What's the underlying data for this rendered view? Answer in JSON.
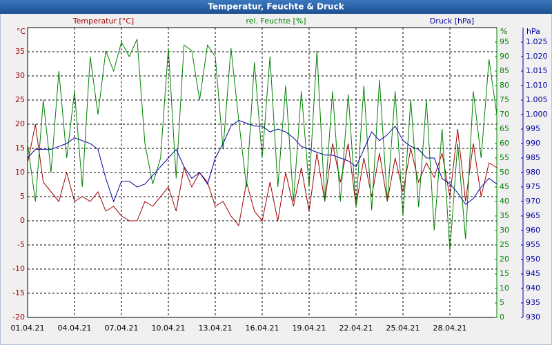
{
  "chart_data": {
    "type": "line",
    "title": "Temperatur, Feuchte & Druck",
    "ylabel": "°C",
    "y2label": "%",
    "y3label": "hPa",
    "x": [
      0,
      0.5,
      1,
      1.5,
      2,
      2.5,
      3,
      3.5,
      4,
      4.5,
      5,
      5.5,
      6,
      6.5,
      7,
      7.5,
      8,
      8.5,
      9,
      9.5,
      10,
      10.5,
      11,
      11.5,
      12,
      12.5,
      13,
      13.5,
      14,
      14.5,
      15,
      15.5,
      16,
      16.5,
      17,
      17.5,
      18,
      18.5,
      19,
      19.5,
      20,
      20.5,
      21,
      21.5,
      22,
      22.5,
      23,
      23.5,
      24,
      24.5,
      25,
      25.5,
      26,
      26.5,
      27,
      27.5,
      28,
      28.5,
      29,
      29.5,
      30
    ],
    "xlim": [
      0,
      30
    ],
    "xticks": [
      {
        "value": 0,
        "label": "01.04.21"
      },
      {
        "value": 3,
        "label": "04.04.21"
      },
      {
        "value": 6,
        "label": "07.04.21"
      },
      {
        "value": 9,
        "label": "10.04.21"
      },
      {
        "value": 12,
        "label": "13.04.21"
      },
      {
        "value": 15,
        "label": "16.04.21"
      },
      {
        "value": 18,
        "label": "19.04.21"
      },
      {
        "value": 21,
        "label": "22.04.21"
      },
      {
        "value": 24,
        "label": "25.04.21"
      },
      {
        "value": 27,
        "label": "28.04.21"
      }
    ],
    "ylim": [
      -20,
      40
    ],
    "yticks": [
      -20,
      -15,
      -10,
      -5,
      0,
      5,
      10,
      15,
      20,
      25,
      30,
      35
    ],
    "y2lim": [
      0,
      100
    ],
    "y2ticks": [
      0,
      5,
      10,
      15,
      20,
      25,
      30,
      35,
      40,
      45,
      50,
      55,
      60,
      65,
      70,
      75,
      80,
      85,
      90,
      95
    ],
    "y3lim": [
      930,
      1030
    ],
    "y3ticks": [
      930,
      935,
      940,
      945,
      950,
      955,
      960,
      965,
      970,
      975,
      980,
      985,
      990,
      995,
      {
        "value": 1000,
        "label": "1.000"
      },
      {
        "value": 1005,
        "label": "1.005"
      },
      {
        "value": 1010,
        "label": "1.010"
      },
      {
        "value": 1015,
        "label": "1.015"
      },
      {
        "value": 1020,
        "label": "1.020"
      },
      {
        "value": 1025,
        "label": "1.025"
      }
    ],
    "grid": true,
    "series": [
      {
        "name": "Temperatur [°C]",
        "color": "#a00000",
        "axis": "y",
        "values": [
          12,
          20,
          8,
          6,
          4,
          10,
          4,
          5,
          4,
          6,
          2,
          3,
          1,
          0,
          0,
          4,
          3,
          5,
          7,
          2,
          11,
          7,
          10,
          8,
          3,
          4,
          1,
          -1,
          8,
          2,
          0,
          8,
          0,
          10,
          3,
          11,
          2,
          14,
          4,
          16,
          8,
          16,
          3,
          13,
          5,
          14,
          4,
          13,
          6,
          15,
          8,
          12,
          9,
          14,
          5,
          19,
          4,
          16,
          5,
          12,
          11
        ]
      },
      {
        "name": "rel. Feuchte [%]",
        "color": "#008000",
        "axis": "y2",
        "values": [
          60,
          40,
          75,
          50,
          85,
          55,
          78,
          45,
          90,
          70,
          92,
          85,
          95,
          90,
          96,
          60,
          46,
          55,
          93,
          48,
          94,
          92,
          75,
          94,
          90,
          58,
          93,
          68,
          45,
          88,
          55,
          90,
          45,
          80,
          40,
          78,
          45,
          92,
          40,
          78,
          40,
          77,
          38,
          80,
          37,
          82,
          40,
          78,
          35,
          75,
          38,
          75,
          30,
          65,
          23,
          60,
          27,
          78,
          55,
          89,
          70
        ]
      },
      {
        "name": "Druck [hPa]",
        "color": "#0000a0",
        "axis": "y3",
        "values": [
          985,
          988,
          988,
          988,
          989,
          990,
          992,
          991,
          990,
          988,
          978,
          970,
          977,
          977,
          975,
          976,
          979,
          982,
          985,
          988,
          982,
          978,
          980,
          976,
          985,
          990,
          996,
          998,
          997,
          996,
          996,
          994,
          995,
          994,
          992,
          989,
          988,
          987,
          986,
          986,
          985,
          984,
          982,
          988,
          994,
          991,
          993,
          996,
          991,
          989,
          988,
          985,
          985,
          978,
          976,
          973,
          969,
          971,
          975,
          978,
          976
        ]
      }
    ]
  }
}
